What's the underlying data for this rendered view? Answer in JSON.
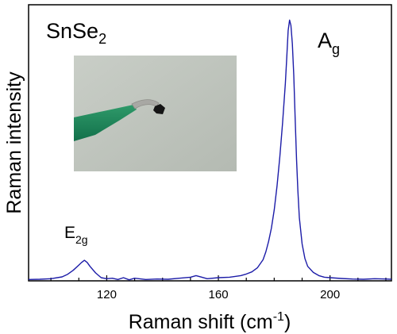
{
  "chart_data": {
    "type": "line",
    "title": "",
    "xlabel": "Raman shift (cm",
    "xlabel_sup": "-1",
    "xlabel_close": ")",
    "ylabel": "Raman intensity",
    "xlim": [
      92,
      222
    ],
    "ylim": [
      0,
      1.0
    ],
    "x_ticks": [
      120,
      160,
      200
    ],
    "x_tick_labels": [
      "120",
      "160",
      "200"
    ],
    "x_minor_step": 10,
    "y_tick_labels": [],
    "grid": false,
    "legend": "none",
    "series": [
      {
        "color": "#1c1ca8",
        "x": [
          92,
          96,
          100,
          104,
          106,
          108,
          110,
          111,
          112,
          113,
          114,
          116,
          118,
          120,
          122,
          124,
          126,
          128,
          130,
          134,
          138,
          142,
          146,
          150,
          152,
          156,
          160,
          164,
          168,
          170,
          172,
          174,
          176,
          177,
          178,
          179,
          180,
          181,
          182,
          183,
          184,
          184.5,
          185,
          185.5,
          186,
          186.5,
          187,
          187.5,
          188,
          188.5,
          189,
          190,
          191,
          192,
          194,
          196,
          198,
          200,
          204,
          208,
          212,
          216,
          220,
          222
        ],
        "y": [
          0.005,
          0.006,
          0.008,
          0.015,
          0.025,
          0.04,
          0.06,
          0.07,
          0.078,
          0.07,
          0.055,
          0.03,
          0.012,
          0.008,
          0.01,
          0.005,
          0.012,
          0.004,
          0.01,
          0.005,
          0.007,
          0.006,
          0.01,
          0.014,
          0.02,
          0.008,
          0.012,
          0.014,
          0.02,
          0.026,
          0.034,
          0.05,
          0.08,
          0.11,
          0.15,
          0.2,
          0.27,
          0.36,
          0.47,
          0.6,
          0.75,
          0.85,
          0.95,
          0.99,
          0.97,
          0.9,
          0.78,
          0.62,
          0.46,
          0.34,
          0.24,
          0.14,
          0.085,
          0.055,
          0.032,
          0.02,
          0.014,
          0.012,
          0.009,
          0.007,
          0.006,
          0.008,
          0.007,
          0.006
        ]
      }
    ],
    "annotations": {
      "sample": {
        "text": "SnSe",
        "sub": "2"
      },
      "peak_a": {
        "text": "A",
        "sub": "g",
        "x": 188,
        "y": 0.9
      },
      "peak_e": {
        "text": "E",
        "sub": "2g",
        "x": 111,
        "y": 0.15
      }
    },
    "inset": {
      "type": "photo",
      "subject": "green tweezers holding a small dark flake",
      "corner": "top-left"
    }
  }
}
